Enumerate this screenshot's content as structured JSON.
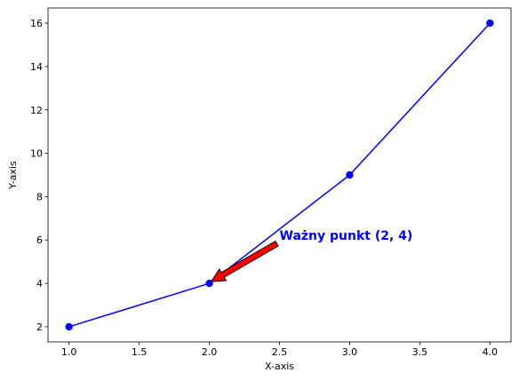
{
  "chart_data": {
    "type": "line",
    "title": "",
    "xlabel": "X-axis",
    "ylabel": "Y-axis",
    "x": [
      1,
      2,
      3,
      4
    ],
    "series": [
      {
        "values": [
          2,
          4,
          9,
          16
        ],
        "color": "#0000ff",
        "marker": "circle"
      }
    ],
    "xlim": [
      0.85,
      4.15
    ],
    "ylim": [
      1.3,
      16.7
    ],
    "xticks": [
      "1.0",
      "1.5",
      "2.0",
      "2.5",
      "3.0",
      "3.5",
      "4.0"
    ],
    "yticks": [
      "2",
      "4",
      "6",
      "8",
      "10",
      "12",
      "14",
      "16"
    ],
    "grid": false,
    "legend": "none",
    "annotation": {
      "text": "Ważny punkt (2, 4)",
      "point": [
        2,
        4
      ],
      "text_at": [
        2.5,
        6
      ],
      "text_color": "#0000ff",
      "arrow_fill": "#ff0000",
      "arrow_edge": "#000000"
    }
  }
}
